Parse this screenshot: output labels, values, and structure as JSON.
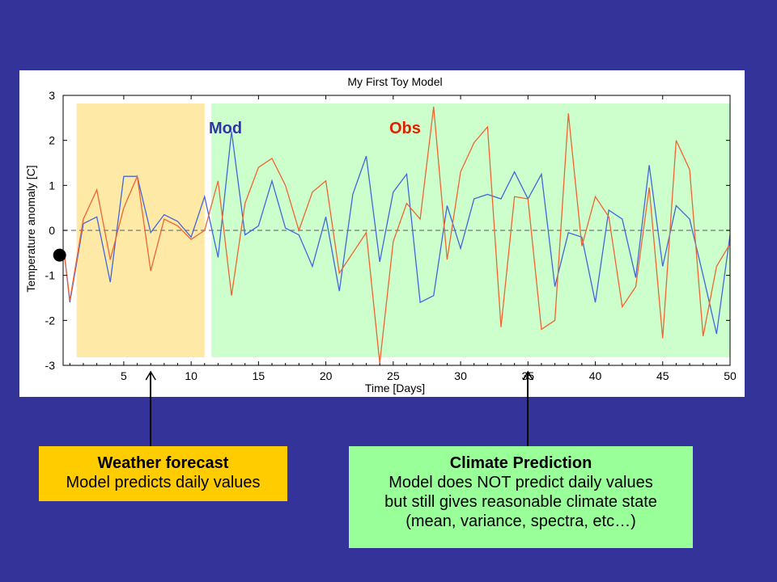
{
  "chart_data": {
    "type": "line",
    "title": "My First Toy Model",
    "xlabel": "Time [Days]",
    "ylabel": "Temperature anomaly [C]",
    "xlim": [
      0.5,
      50
    ],
    "ylim": [
      -3,
      3
    ],
    "xticks": [
      5,
      10,
      15,
      20,
      25,
      30,
      35,
      40,
      45,
      50
    ],
    "yticks": [
      3,
      2,
      1,
      0,
      -1,
      -2,
      -3
    ],
    "zero_line": "dashed",
    "regions": [
      {
        "name": "weather",
        "x": [
          1.5,
          11
        ],
        "color": "#ffe9a6"
      },
      {
        "name": "climate",
        "x": [
          11.5,
          50
        ],
        "color": "#ccffcc"
      }
    ],
    "initial_point": {
      "x": 0.6,
      "y": -0.55
    },
    "series": [
      {
        "name": "Mod",
        "color": "#4466dd",
        "x": [
          0.6,
          1,
          2,
          3,
          4,
          5,
          6,
          7,
          8,
          9,
          10,
          11,
          12,
          13,
          14,
          15,
          16,
          17,
          18,
          19,
          20,
          21,
          22,
          23,
          24,
          25,
          26,
          27,
          28,
          29,
          30,
          31,
          32,
          33,
          34,
          35,
          36,
          37,
          38,
          39,
          40,
          41,
          42,
          43,
          44,
          45,
          46,
          47,
          48,
          49,
          50
        ],
        "values": [
          -0.55,
          -1.6,
          0.15,
          0.3,
          -1.15,
          1.2,
          1.2,
          -0.05,
          0.35,
          0.2,
          -0.15,
          0.75,
          -0.6,
          2.2,
          -0.1,
          0.1,
          1.1,
          0.05,
          -0.1,
          -0.8,
          0.3,
          -1.35,
          0.8,
          1.65,
          -0.7,
          0.85,
          1.25,
          -1.6,
          -1.45,
          0.55,
          -0.4,
          0.7,
          0.8,
          0.7,
          1.3,
          0.7,
          1.25,
          -1.25,
          -0.05,
          -0.15,
          -1.6,
          0.45,
          0.25,
          -1.05,
          1.45,
          -0.8,
          0.55,
          0.25,
          -1.0,
          -2.3,
          -0.1
        ]
      },
      {
        "name": "Obs",
        "color": "#ee6633",
        "x": [
          0.6,
          1,
          2,
          3,
          4,
          5,
          6,
          7,
          8,
          9,
          10,
          11,
          12,
          13,
          14,
          15,
          16,
          17,
          18,
          19,
          20,
          21,
          22,
          23,
          24,
          25,
          26,
          27,
          28,
          29,
          30,
          31,
          32,
          33,
          34,
          35,
          36,
          37,
          38,
          39,
          40,
          41,
          42,
          43,
          44,
          45,
          46,
          47,
          48,
          49,
          50
        ],
        "values": [
          -0.55,
          -1.55,
          0.25,
          0.9,
          -0.65,
          0.5,
          1.2,
          -0.9,
          0.25,
          0.1,
          -0.2,
          0.0,
          1.1,
          -1.45,
          0.6,
          1.4,
          1.6,
          1.0,
          0.0,
          0.85,
          1.1,
          -0.95,
          -0.5,
          -0.05,
          -2.95,
          -0.25,
          0.6,
          0.25,
          2.75,
          -0.65,
          1.3,
          1.95,
          2.3,
          -2.15,
          0.75,
          0.7,
          -2.2,
          -2.0,
          2.6,
          -0.35,
          0.75,
          0.3,
          -1.7,
          -1.25,
          0.95,
          -2.4,
          2.0,
          1.35,
          -2.35,
          -0.8,
          -0.3
        ]
      }
    ]
  },
  "callouts": {
    "weather": {
      "title": "Weather forecast",
      "line1": "Model predicts daily values",
      "target_x": 7
    },
    "climate": {
      "title": "Climate Prediction",
      "line1": "Model does NOT predict daily values",
      "line2": "but still gives reasonable climate state",
      "line3": "(mean, variance, spectra, etc…)",
      "target_x": 35
    }
  }
}
